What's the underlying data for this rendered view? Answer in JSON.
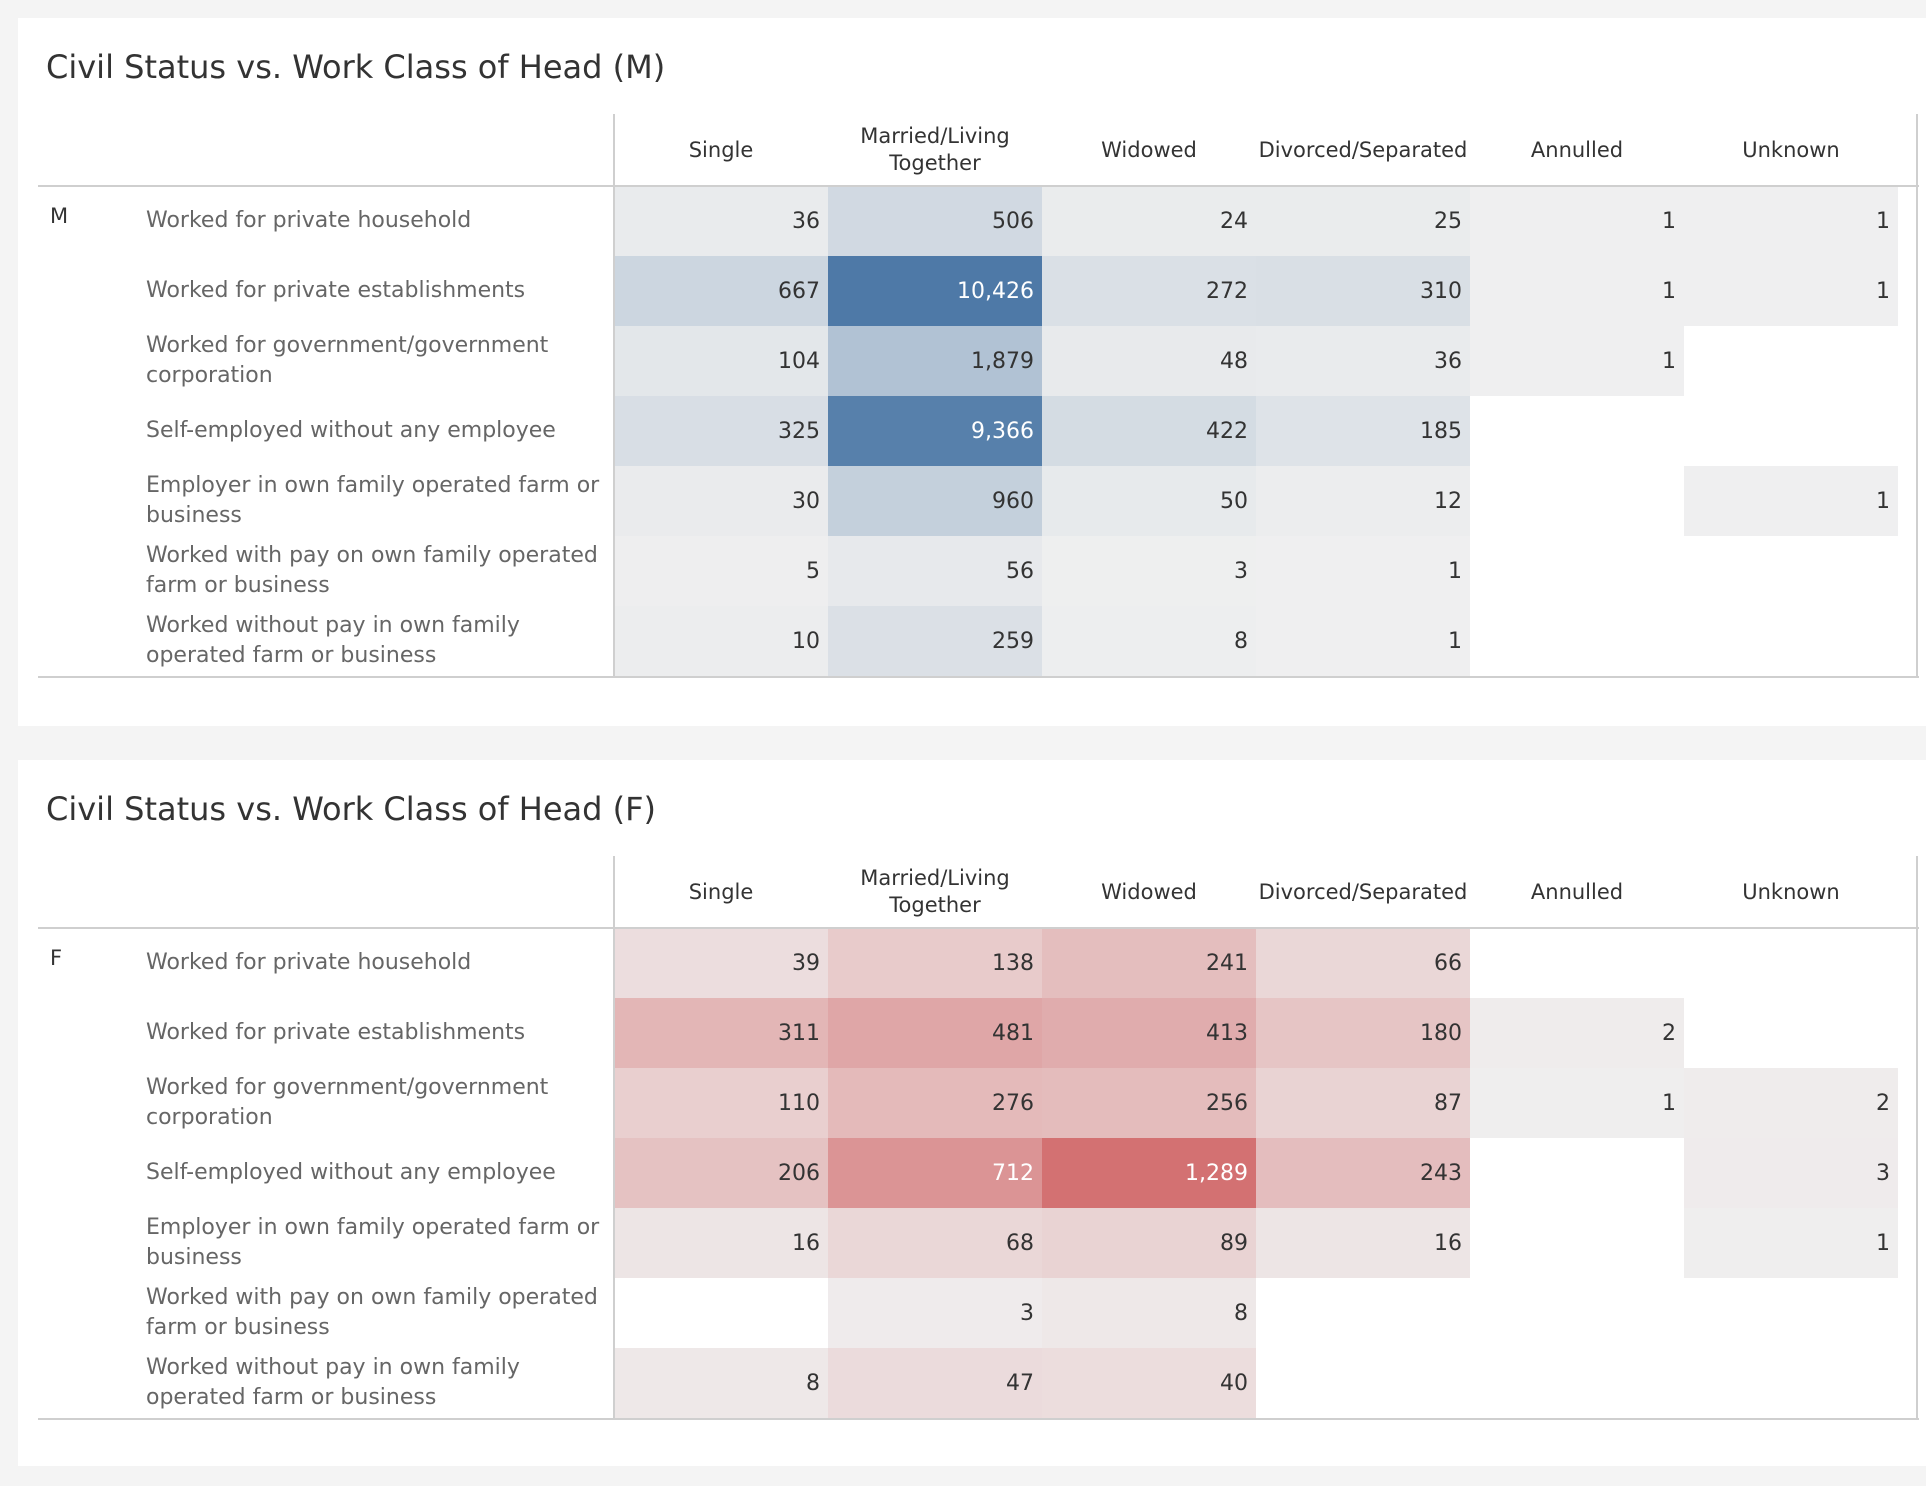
{
  "chart_data": [
    {
      "type": "table",
      "title": "Civil Status vs. Work Class of Head (M)",
      "group": "M",
      "palette": "blue",
      "columns": [
        "Single",
        "Married/Living Together",
        "Widowed",
        "Divorced/Separated",
        "Annulled",
        "Unknown"
      ],
      "rows": [
        {
          "label": "Worked for private household",
          "values": [
            36,
            506,
            24,
            25,
            1,
            1
          ]
        },
        {
          "label": "Worked for private establishments",
          "values": [
            667,
            10426,
            272,
            310,
            1,
            1
          ]
        },
        {
          "label": "Worked for government/government corporation",
          "values": [
            104,
            1879,
            48,
            36,
            1,
            null
          ]
        },
        {
          "label": "Self-employed without any employee",
          "values": [
            325,
            9366,
            422,
            185,
            null,
            null
          ]
        },
        {
          "label": "Employer in own family operated farm or business",
          "values": [
            30,
            960,
            50,
            12,
            null,
            1
          ]
        },
        {
          "label": "Worked with pay on own family operated farm or business",
          "values": [
            5,
            56,
            3,
            1,
            null,
            null
          ]
        },
        {
          "label": "Worked without pay in own family operated farm or business",
          "values": [
            10,
            259,
            8,
            1,
            null,
            null
          ]
        }
      ]
    },
    {
      "type": "table",
      "title": "Civil Status vs. Work Class of Head (F)",
      "group": "F",
      "palette": "red",
      "columns": [
        "Single",
        "Married/Living Together",
        "Widowed",
        "Divorced/Separated",
        "Annulled",
        "Unknown"
      ],
      "rows": [
        {
          "label": "Worked for private household",
          "values": [
            39,
            138,
            241,
            66,
            null,
            null
          ]
        },
        {
          "label": "Worked for private establishments",
          "values": [
            311,
            481,
            413,
            180,
            2,
            null
          ]
        },
        {
          "label": "Worked for government/government corporation",
          "values": [
            110,
            276,
            256,
            87,
            1,
            2
          ]
        },
        {
          "label": "Self-employed without any employee",
          "values": [
            206,
            712,
            1289,
            243,
            null,
            3
          ]
        },
        {
          "label": "Employer in own family operated farm or business",
          "values": [
            16,
            68,
            89,
            16,
            null,
            1
          ]
        },
        {
          "label": "Worked with pay on own family operated farm or business",
          "values": [
            null,
            3,
            8,
            null,
            null,
            null
          ]
        },
        {
          "label": "Worked without pay in own family operated farm or business",
          "values": [
            8,
            47,
            40,
            null,
            null,
            null
          ]
        }
      ]
    }
  ],
  "colors": {
    "blue_high": "#4e79a7",
    "red_high": "#d37172",
    "neutral_low": "#f0f0f0"
  }
}
